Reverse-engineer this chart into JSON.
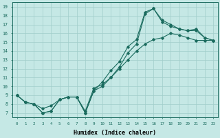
{
  "xlabel": "Humidex (Indice chaleur)",
  "ylabel": "",
  "background_color": "#c5e8e5",
  "grid_color": "#a0ceca",
  "line_color": "#1a6b5e",
  "xlim": [
    -0.5,
    23.5
  ],
  "ylim": [
    6.5,
    19.5
  ],
  "xtick_labels": [
    "0",
    "1",
    "2",
    "3",
    "4",
    "5",
    "6",
    "7",
    "8",
    "9",
    "10",
    "11",
    "12",
    "13",
    "14",
    "15",
    "16",
    "17",
    "18",
    "19",
    "20",
    "21",
    "22",
    "23"
  ],
  "ytick_labels": [
    "7",
    "8",
    "9",
    "10",
    "11",
    "12",
    "13",
    "14",
    "15",
    "16",
    "17",
    "18",
    "19"
  ],
  "series": {
    "line_straight_x": [
      0,
      1,
      2,
      3,
      4,
      5,
      6,
      7,
      8,
      9,
      10,
      11,
      12,
      13,
      14,
      15,
      16,
      17,
      18,
      19,
      20,
      21,
      22,
      23
    ],
    "line_straight_y": [
      9.0,
      8.2,
      8.0,
      7.5,
      7.8,
      8.5,
      8.8,
      8.8,
      7.2,
      9.8,
      10.2,
      11.0,
      12.0,
      13.0,
      14.0,
      14.8,
      15.3,
      15.5,
      16.0,
      15.8,
      15.5,
      15.2,
      15.2,
      15.2
    ],
    "line_peak_x": [
      0,
      1,
      2,
      3,
      4,
      5,
      6,
      7,
      8,
      9,
      10,
      11,
      12,
      13,
      14,
      15,
      16,
      17,
      18,
      19,
      20,
      21,
      22,
      23
    ],
    "line_peak_y": [
      9.0,
      8.2,
      8.0,
      7.0,
      7.2,
      8.5,
      8.8,
      8.8,
      7.0,
      9.5,
      10.5,
      11.8,
      12.8,
      14.5,
      15.3,
      18.4,
      18.8,
      17.5,
      17.0,
      16.5,
      16.3,
      16.5,
      15.5,
      15.2
    ],
    "line_mid_x": [
      0,
      1,
      2,
      3,
      4,
      5,
      6,
      7,
      8,
      9,
      10,
      11,
      12,
      13,
      14,
      15,
      16,
      17,
      18,
      19,
      20,
      21,
      22,
      23
    ],
    "line_mid_y": [
      9.0,
      8.2,
      8.0,
      7.0,
      7.2,
      8.5,
      8.8,
      8.8,
      7.0,
      9.5,
      10.0,
      11.0,
      12.2,
      13.8,
      14.8,
      18.2,
      18.8,
      17.3,
      16.8,
      16.5,
      16.3,
      16.3,
      15.5,
      15.2
    ]
  }
}
